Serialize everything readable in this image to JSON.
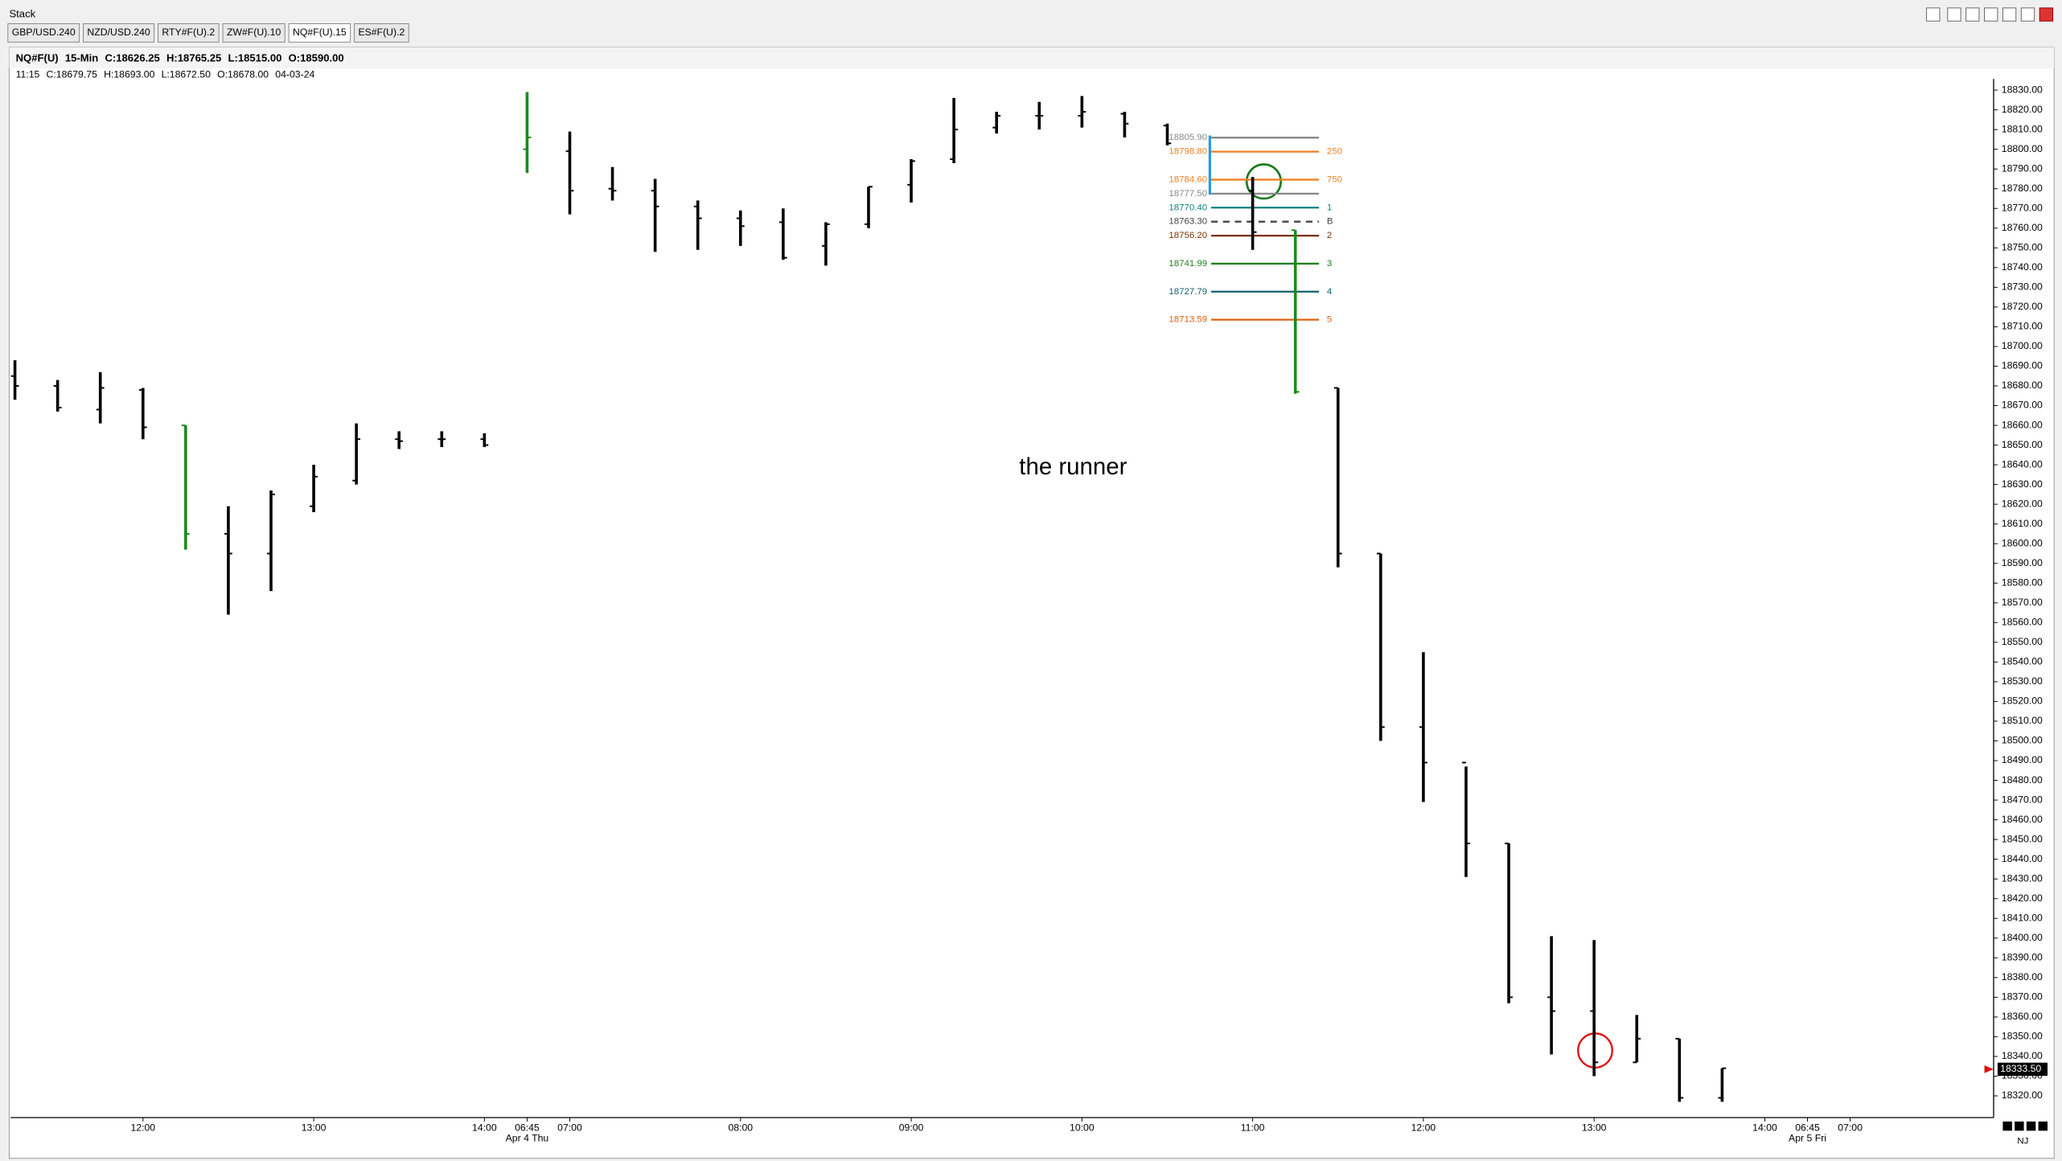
{
  "window": {
    "title": "Stack",
    "tabs": [
      "GBP/USD.240",
      "NZD/USD.240",
      "RTY#F(U).2",
      "ZW#F(U).10",
      "NQ#F(U).15",
      "ES#F(U).2"
    ],
    "active_tab": 4
  },
  "chart_data": {
    "type": "ohlc",
    "info": [
      "NQ#F(U)",
      "15-Min",
      "C:18626.25",
      "H:18765.25",
      "L:18515.00",
      "O:18590.00"
    ],
    "info2": [
      "11:15",
      "C:18679.75",
      "H:18693.00",
      "L:18672.50",
      "O:18678.00",
      "04-03-24"
    ],
    "annotation": "the runner",
    "timezone": "NJ",
    "x": [
      0,
      1,
      2,
      3,
      4,
      5,
      6,
      7,
      8,
      9,
      10,
      11,
      12,
      13,
      14,
      15,
      16,
      17,
      18,
      19,
      20,
      21,
      22,
      23,
      24,
      25,
      26,
      27,
      29,
      30,
      31,
      32,
      33,
      34,
      35,
      36,
      37,
      38,
      39,
      40
    ],
    "open": [
      18685,
      18680,
      18668,
      18678,
      18660,
      18605,
      18595,
      18619,
      18632,
      18653,
      18653,
      18653,
      18800,
      18799,
      18780,
      18779,
      18771,
      18765,
      18763,
      18751,
      18762,
      18782,
      18795,
      18811,
      18817,
      18817,
      18818,
      18812,
      18779,
      18759,
      18679,
      18595,
      18507,
      18489,
      18448,
      18370,
      18363,
      18337,
      18349,
      18319
    ],
    "high": [
      18693,
      18683,
      18687,
      18679,
      18660,
      18619,
      18627,
      18640,
      18661,
      18657,
      18657,
      18656,
      18829,
      18809,
      18791,
      18785,
      18774,
      18769,
      18770,
      18763,
      18781,
      18795,
      18826,
      18819,
      18824,
      18827,
      18819,
      18813,
      18786,
      18759,
      18679,
      18595,
      18545,
      18487,
      18448,
      18401,
      18399,
      18361,
      18349,
      18334
    ],
    "low": [
      18673,
      18667,
      18661,
      18653,
      18597,
      18564,
      18576,
      18616,
      18630,
      18648,
      18649,
      18649,
      18788,
      18767,
      18774,
      18748,
      18749,
      18751,
      18744,
      18741,
      18760,
      18773,
      18793,
      18808,
      18810,
      18811,
      18806,
      18802,
      18749,
      18676,
      18588,
      18500,
      18469,
      18431,
      18367,
      18341,
      18330,
      18337,
      18317,
      18317
    ],
    "close": [
      18680,
      18669,
      18679,
      18659,
      18605,
      18595,
      18625,
      18634,
      18653,
      18652,
      18653,
      18650,
      18806,
      18779,
      18779,
      18771,
      18765,
      18761,
      18745,
      18762,
      18781,
      18794,
      18810,
      18817,
      18817,
      18819,
      18813,
      18803,
      18758,
      18677,
      18595,
      18507,
      18489,
      18448,
      18370,
      18363,
      18337,
      18349,
      18319,
      18334
    ],
    "color": "#000000",
    "highlight_color": "#1a8a1a",
    "highlight": [
      4,
      12,
      29
    ],
    "xlim": [
      -0.35,
      46.33
    ],
    "xticks": [
      {
        "value": 3,
        "label": "12:00"
      },
      {
        "value": 7,
        "label": "13:00"
      },
      {
        "value": 11,
        "label": "14:00"
      },
      {
        "value": 12,
        "label": "06:45"
      },
      {
        "value": 13,
        "label": "07:00"
      },
      {
        "value": 17,
        "label": "08:00"
      },
      {
        "value": 21,
        "label": "09:00"
      },
      {
        "value": 25,
        "label": "10:00"
      },
      {
        "value": 29,
        "label": "11:00"
      },
      {
        "value": 33,
        "label": "12:00"
      },
      {
        "value": 37,
        "label": "13:00"
      },
      {
        "value": 41,
        "label": "14:00"
      },
      {
        "value": 42,
        "label": "06:45"
      },
      {
        "value": 43,
        "label": "07:00"
      }
    ],
    "date_labels": [
      {
        "value": 12,
        "label": "Apr 4 Thu"
      },
      {
        "value": 42,
        "label": "Apr 5 Fri"
      }
    ],
    "ylim": [
      18309,
      18837
    ],
    "yticks": [
      {
        "value": 18320,
        "label": "18320.00"
      },
      {
        "value": 18330,
        "label": "18330.00"
      },
      {
        "value": 18340,
        "label": "18340.00"
      },
      {
        "value": 18350,
        "label": "18350.00"
      },
      {
        "value": 18360,
        "label": "18360.00"
      },
      {
        "value": 18370,
        "label": "18370.00"
      },
      {
        "value": 18380,
        "label": "18380.00"
      },
      {
        "value": 18390,
        "label": "18390.00"
      },
      {
        "value": 18400,
        "label": "18400.00"
      },
      {
        "value": 18410,
        "label": "18410.00"
      },
      {
        "value": 18420,
        "label": "18420.00"
      },
      {
        "value": 18430,
        "label": "18430.00"
      },
      {
        "value": 18440,
        "label": "18440.00"
      },
      {
        "value": 18450,
        "label": "18450.00"
      },
      {
        "value": 18460,
        "label": "18460.00"
      },
      {
        "value": 18470,
        "label": "18470.00"
      },
      {
        "value": 18480,
        "label": "18480.00"
      },
      {
        "value": 18490,
        "label": "18490.00"
      },
      {
        "value": 18500,
        "label": "18500.00"
      },
      {
        "value": 18510,
        "label": "18510.00"
      },
      {
        "value": 18520,
        "label": "18520.00"
      },
      {
        "value": 18530,
        "label": "18530.00"
      },
      {
        "value": 18540,
        "label": "18540.00"
      },
      {
        "value": 18550,
        "label": "18550.00"
      },
      {
        "value": 18560,
        "label": "18560.00"
      },
      {
        "value": 18570,
        "label": "18570.00"
      },
      {
        "value": 18580,
        "label": "18580.00"
      },
      {
        "value": 18590,
        "label": "18590.00"
      },
      {
        "value": 18600,
        "label": "18600.00"
      },
      {
        "value": 18610,
        "label": "18610.00"
      },
      {
        "value": 18620,
        "label": "18620.00"
      },
      {
        "value": 18630,
        "label": "18630.00"
      },
      {
        "value": 18640,
        "label": "18640.00"
      },
      {
        "value": 18650,
        "label": "18650.00"
      },
      {
        "value": 18660,
        "label": "18660.00"
      },
      {
        "value": 18670,
        "label": "18670.00"
      },
      {
        "value": 18680,
        "label": "18680.00"
      },
      {
        "value": 18690,
        "label": "18690.00"
      },
      {
        "value": 18700,
        "label": "18700.00"
      },
      {
        "value": 18710,
        "label": "18710.00"
      },
      {
        "value": 18720,
        "label": "18720.00"
      },
      {
        "value": 18730,
        "label": "18730.00"
      },
      {
        "value": 18740,
        "label": "18740.00"
      },
      {
        "value": 18750,
        "label": "18750.00"
      },
      {
        "value": 18760,
        "label": "18760.00"
      },
      {
        "value": 18770,
        "label": "18770.00"
      },
      {
        "value": 18780,
        "label": "18780.00"
      },
      {
        "value": 18790,
        "label": "18790.00"
      },
      {
        "value": 18800,
        "label": "18800.00"
      },
      {
        "value": 18810,
        "label": "18810.00"
      },
      {
        "value": 18820,
        "label": "18820.00"
      },
      {
        "value": 18830,
        "label": "18830.00"
      }
    ],
    "last_price": {
      "value": 18333.5,
      "label": "18333.50"
    },
    "levels": [
      {
        "value": 18805.9,
        "label": "18805.90",
        "color": "#888888"
      },
      {
        "value": 18798.8,
        "label": "18798.80",
        "tag": "250",
        "color": "#f08020"
      },
      {
        "value": 18784.6,
        "label": "18784.60",
        "tag": "750",
        "color": "#f08020"
      },
      {
        "value": 18777.5,
        "label": "18777.50",
        "color": "#888888"
      },
      {
        "value": 18770.4,
        "label": "18770.40",
        "tag": "1",
        "color": "#108080"
      },
      {
        "value": 18763.3,
        "label": "18763.30",
        "tag": "B",
        "color": "#444444",
        "dash": true
      },
      {
        "value": 18756.2,
        "label": "18756.20",
        "tag": "2",
        "color": "#7a3000"
      },
      {
        "value": 18741.99,
        "label": "18741.99",
        "tag": "3",
        "color": "#208020"
      },
      {
        "value": 18727.79,
        "label": "18727.79",
        "tag": "4",
        "color": "#106070"
      },
      {
        "value": 18713.59,
        "label": "18713.59",
        "tag": "5",
        "color": "#e06010"
      }
    ]
  }
}
